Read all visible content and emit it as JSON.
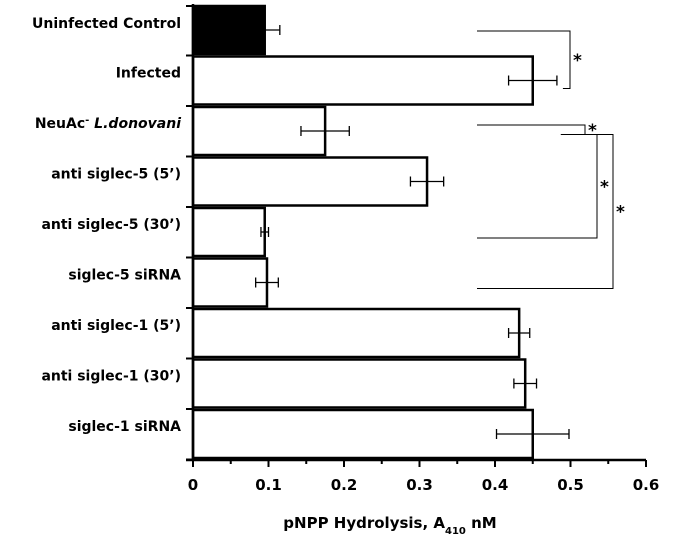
{
  "chart_data": {
    "type": "bar",
    "orientation": "horizontal",
    "categories": [
      {
        "name": "Uninfected Control",
        "italic_part": ""
      },
      {
        "name": "Infected",
        "italic_part": ""
      },
      {
        "name": "NeuAc",
        "superscript": "-",
        "italic_part": "L.donovani"
      },
      {
        "name": "anti siglec-5 (5’)",
        "italic_part": ""
      },
      {
        "name": "anti siglec-5 (30’)",
        "italic_part": ""
      },
      {
        "name": "siglec-5 siRNA",
        "italic_part": ""
      },
      {
        "name": "anti siglec-1 (5’)",
        "italic_part": ""
      },
      {
        "name": "anti siglec-1 (30’)",
        "italic_part": ""
      },
      {
        "name": "siglec-1 siRNA",
        "italic_part": ""
      }
    ],
    "values": [
      0.095,
      0.45,
      0.175,
      0.31,
      0.095,
      0.098,
      0.432,
      0.44,
      0.45
    ],
    "errors": [
      0.02,
      0.032,
      0.032,
      0.022,
      0.005,
      0.015,
      0.014,
      0.015,
      0.048
    ],
    "fills": [
      "#000000",
      "#ffffff",
      "#ffffff",
      "#ffffff",
      "#ffffff",
      "#ffffff",
      "#ffffff",
      "#ffffff",
      "#ffffff"
    ],
    "xlim": [
      0,
      0.6
    ],
    "xticks": [
      0,
      0.1,
      0.2,
      0.3,
      0.4,
      0.5,
      0.6
    ],
    "xtick_labels": [
      "0",
      "0.1",
      "0.2",
      "0.3",
      "0.4",
      "0.5",
      "0.6"
    ],
    "xlabel": {
      "main": "pNPP Hydrolysis, A",
      "subscript": "410",
      "unit": " nM"
    },
    "title": "",
    "grid": false,
    "significance": [
      {
        "from": 0,
        "to": 1,
        "label": "*"
      },
      {
        "from": 1,
        "to": 2,
        "label": "*"
      },
      {
        "from": 1,
        "to": 4,
        "label": "*"
      },
      {
        "from": 1,
        "to": 5,
        "label": "*"
      }
    ]
  }
}
